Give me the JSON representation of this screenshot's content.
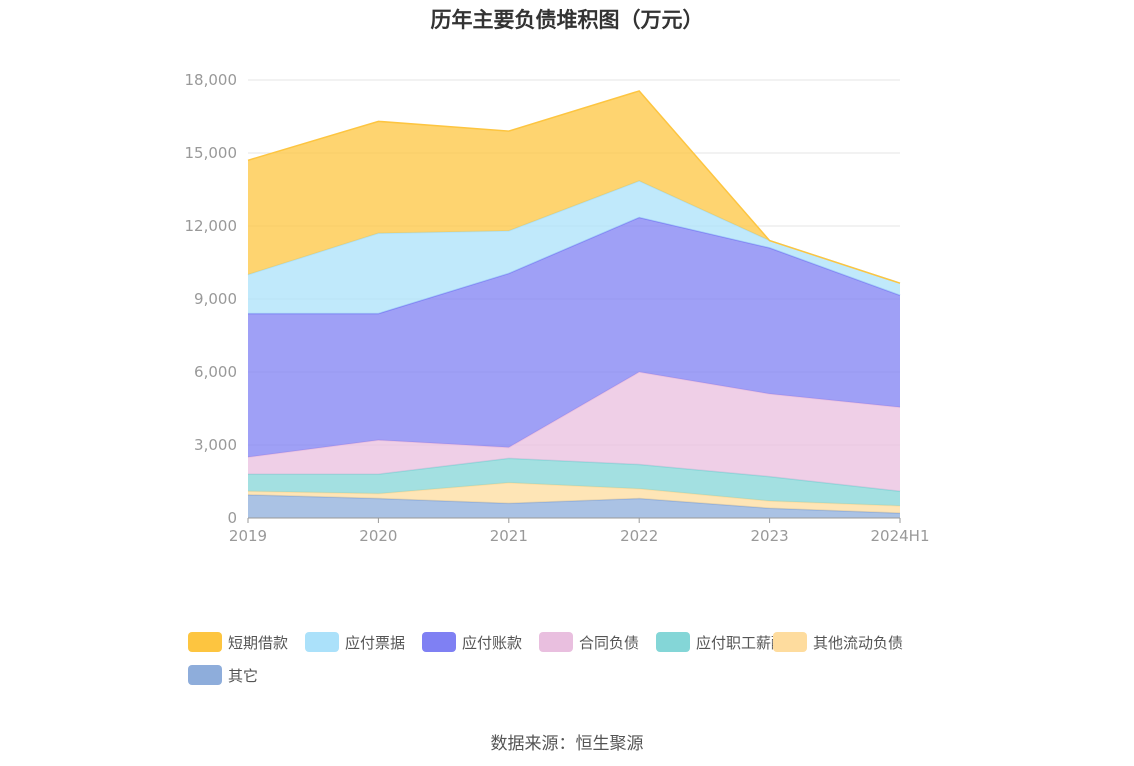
{
  "title": "历年主要负债堆积图（万元）",
  "source": "数据来源：恒生聚源",
  "chart_data": {
    "type": "area",
    "stacked": true,
    "categories": [
      "2019",
      "2020",
      "2021",
      "2022",
      "2023",
      "2024H1"
    ],
    "ylim": [
      0,
      18000
    ],
    "yticks": [
      0,
      3000,
      6000,
      9000,
      12000,
      15000,
      18000
    ],
    "ytick_labels": [
      "0",
      "3,000",
      "6,000",
      "9,000",
      "12,000",
      "15,000",
      "18,000"
    ],
    "grid": true,
    "legend_position": "bottom",
    "series": [
      {
        "name": "其它",
        "color": "#8eaddb",
        "values": [
          950,
          800,
          600,
          800,
          400,
          200
        ]
      },
      {
        "name": "其他流动负债",
        "color": "#fedc9e",
        "values": [
          150,
          200,
          850,
          400,
          300,
          300
        ]
      },
      {
        "name": "应付职工薪酬",
        "color": "#84d6d7",
        "values": [
          700,
          800,
          1000,
          1000,
          1000,
          600
        ]
      },
      {
        "name": "合同负债",
        "color": "#e9bfdf",
        "values": [
          700,
          1400,
          450,
          3800,
          3400,
          3450
        ]
      },
      {
        "name": "应付账款",
        "color": "#7f80f3",
        "values": [
          5900,
          5200,
          7150,
          6350,
          6000,
          4600
        ]
      },
      {
        "name": "应付票据",
        "color": "#abe1fa",
        "values": [
          1600,
          3300,
          1750,
          1500,
          300,
          500
        ]
      },
      {
        "name": "短期借款",
        "color": "#fdc540",
        "values": [
          4700,
          4600,
          4100,
          3700,
          0,
          0
        ]
      }
    ]
  },
  "legend_order": [
    "短期借款",
    "应付票据",
    "应付账款",
    "合同负债",
    "应付职工薪酬",
    "其他流动负债",
    "其它"
  ]
}
